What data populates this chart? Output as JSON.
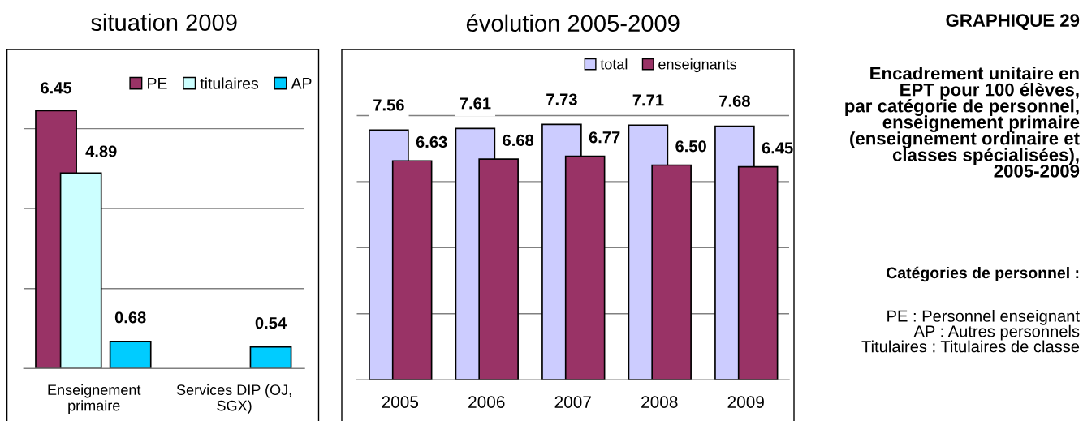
{
  "chart_data": [
    {
      "type": "bar",
      "title": "situation 2009",
      "categories": [
        "Enseignement\nprimaire",
        "Services DIP (OJ,\nSGX)"
      ],
      "series": [
        {
          "name": "PE",
          "color": "#993366",
          "values": [
            6.45,
            null
          ],
          "value_labels": [
            "6.45",
            null
          ]
        },
        {
          "name": "titulaires",
          "color": "#ccffff",
          "values": [
            4.89,
            null
          ],
          "value_labels": [
            "4.89",
            null
          ]
        },
        {
          "name": "AP",
          "color": "#00ccff",
          "values": [
            0.68,
            0.54
          ],
          "value_labels": [
            "0.68",
            "0.54"
          ]
        }
      ],
      "ylim": [
        0,
        8
      ],
      "yticks": [
        {
          "value": 2,
          "label": null
        },
        {
          "value": 4,
          "label": null
        },
        {
          "value": 6,
          "label": null
        }
      ],
      "grid": "y",
      "legend": "top right",
      "tick_labels": "x"
    },
    {
      "type": "bar",
      "title": "évolution 2005-2009",
      "categories": [
        "2005",
        "2006",
        "2007",
        "2008",
        "2009"
      ],
      "series": [
        {
          "name": "total",
          "color": "#ccccff",
          "values": [
            7.56,
            7.61,
            7.73,
            7.71,
            7.68
          ],
          "value_labels": [
            "7.56",
            "7.61",
            "7.73",
            "7.71",
            "7.68"
          ]
        },
        {
          "name": "enseignants",
          "color": "#993366",
          "values": [
            6.63,
            6.68,
            6.77,
            6.5,
            6.45
          ],
          "value_labels": [
            "6.63",
            "6.68",
            "6.77",
            "6.50",
            "6.45"
          ]
        }
      ],
      "ylim": [
        0,
        10
      ],
      "yticks": [
        {
          "value": 2,
          "label": null
        },
        {
          "value": 4,
          "label": null
        },
        {
          "value": 6,
          "label": null
        },
        {
          "value": 8,
          "label": null
        }
      ],
      "grid": "y",
      "legend": "top right",
      "tick_labels": "x"
    },
    {
      "type": "other",
      "title": "GRAPHIQUE 29",
      "annotations": [
        "Encadrement unitaire en\nEPT pour 100 élèves,\npar catégorie de personnel,\nenseignement primaire\n(enseignement ordinaire et\nclasses spécialisées),\n2005-2009",
        "Catégories de personnel :",
        "PE : Personnel enseignant\nAP : Autres personnels\nTitulaires : Titulaires de classe"
      ]
    }
  ]
}
